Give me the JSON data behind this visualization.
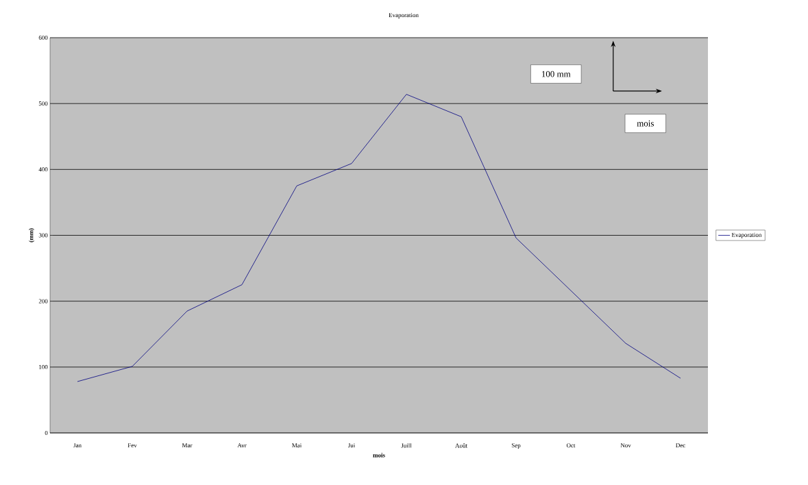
{
  "chart_data": {
    "type": "line",
    "title": "Evaporation",
    "xlabel": "mois",
    "ylabel": "(mm)",
    "categories": [
      "Jan",
      "Fev",
      "Mar",
      "Avr",
      "Mai",
      "Jui",
      "Juill",
      "Août",
      "Sep",
      "Oct",
      "Nov",
      "Dec"
    ],
    "series": [
      {
        "name": "Evaporation",
        "color": "#000080",
        "values": [
          78,
          101,
          185,
          225,
          375,
          409,
          514,
          480,
          296,
          216,
          136,
          83
        ]
      }
    ],
    "ylim": [
      0,
      600
    ],
    "yticks": [
      0,
      100,
      200,
      300,
      400,
      500,
      600
    ],
    "grid": "y",
    "legend": "right",
    "marker": "none",
    "line_style": "solid",
    "annotations": [
      "100 mm",
      "mois"
    ]
  }
}
